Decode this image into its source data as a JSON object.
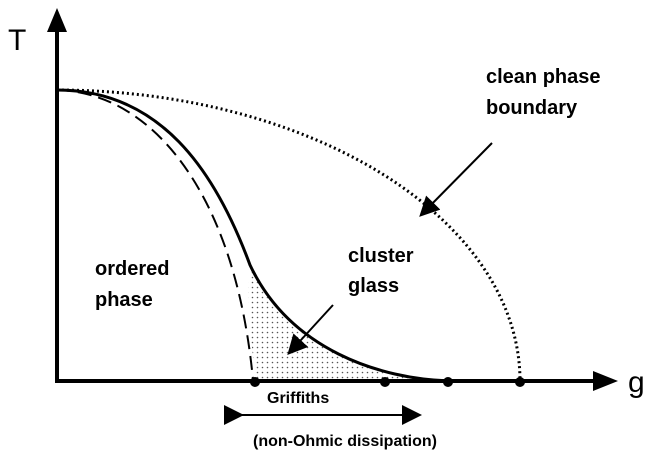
{
  "axes": {
    "y_label": "T",
    "x_label": "g"
  },
  "labels": {
    "clean_boundary": [
      "clean phase",
      "boundary"
    ],
    "ordered": [
      "ordered",
      "phase"
    ],
    "cluster": [
      "cluster",
      "glass"
    ],
    "griffiths": "Griffiths",
    "dissipation": "(non-Ohmic dissipation)"
  }
}
